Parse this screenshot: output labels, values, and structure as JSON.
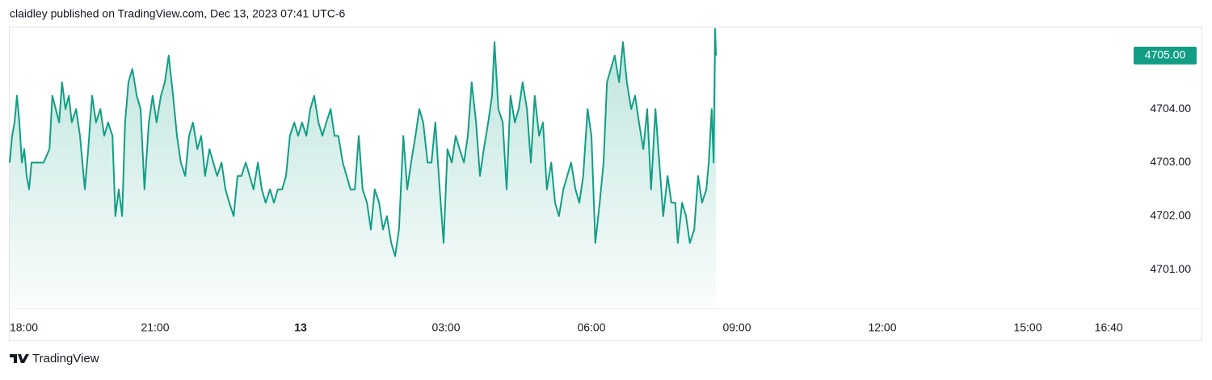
{
  "chart_data": {
    "type": "line",
    "title": "claidley published on TradingView.com, Dec 13, 2023 07:41 UTC-6",
    "brand": "TradingView",
    "color": "#129e85",
    "x": [
      18.0,
      18.05,
      18.1,
      18.15,
      18.2,
      18.25,
      18.3,
      18.35,
      18.4,
      18.45,
      18.53,
      18.7,
      18.82,
      18.88,
      18.95,
      19.02,
      19.08,
      19.15,
      19.22,
      19.28,
      19.37,
      19.45,
      19.55,
      19.62,
      19.7,
      19.78,
      19.87,
      19.95,
      20.03,
      20.12,
      20.18,
      20.25,
      20.32,
      20.38,
      20.45,
      20.53,
      20.62,
      20.7,
      20.78,
      20.87,
      20.95,
      21.03,
      21.12,
      21.2,
      21.28,
      21.37,
      21.45,
      21.53,
      21.62,
      21.7,
      21.78,
      21.87,
      21.95,
      22.03,
      22.12,
      22.2,
      22.28,
      22.37,
      22.45,
      22.53,
      22.62,
      22.7,
      22.78,
      22.87,
      22.95,
      23.03,
      23.12,
      23.2,
      23.28,
      23.37,
      23.45,
      23.53,
      23.62,
      23.7,
      23.78,
      23.87,
      23.95,
      24.03,
      24.12,
      24.2,
      24.28,
      24.37,
      24.45,
      24.53,
      24.62,
      24.7,
      24.78,
      24.87,
      24.95,
      25.03,
      25.12,
      25.2,
      25.28,
      25.37,
      25.45,
      25.53,
      25.62,
      25.7,
      25.78,
      25.87,
      25.95,
      26.03,
      26.12,
      26.2,
      26.28,
      26.37,
      26.45,
      26.53,
      26.62,
      26.7,
      26.78,
      26.87,
      26.95,
      27.03,
      27.12,
      27.2,
      27.28,
      27.37,
      27.45,
      27.53,
      27.62,
      27.7,
      27.78,
      27.87,
      27.95,
      28.0,
      28.08,
      28.17,
      28.25,
      28.33,
      28.42,
      28.5,
      28.58,
      28.67,
      28.75,
      28.83,
      28.92,
      29.0,
      29.08,
      29.17,
      29.25,
      29.33,
      29.42,
      29.5,
      29.58,
      29.67,
      29.75,
      29.83,
      29.92,
      30.0,
      30.08,
      30.17,
      30.25,
      30.32,
      30.4,
      30.48,
      30.57,
      30.65,
      30.73,
      30.82,
      30.9,
      30.98,
      31.07,
      31.15,
      31.23,
      31.32,
      31.4,
      31.48,
      31.57,
      31.65,
      31.73,
      31.78,
      31.87,
      31.95,
      32.03,
      32.12,
      32.2,
      32.28,
      32.37,
      32.42,
      32.48,
      32.52,
      32.55,
      32.57
    ],
    "values": [
      4703.0,
      4703.5,
      4703.75,
      4704.25,
      4703.75,
      4703.0,
      4703.25,
      4702.75,
      4702.5,
      4703.0,
      4703.0,
      4703.0,
      4703.25,
      4704.25,
      4704.0,
      4703.75,
      4704.5,
      4704.0,
      4704.25,
      4703.75,
      4704.0,
      4703.5,
      4702.5,
      4703.25,
      4704.25,
      4703.75,
      4704.0,
      4703.5,
      4703.75,
      4703.5,
      4702.0,
      4702.5,
      4702.0,
      4703.75,
      4704.5,
      4704.75,
      4704.25,
      4704.0,
      4702.5,
      4703.75,
      4704.25,
      4703.75,
      4704.25,
      4704.5,
      4705.0,
      4704.25,
      4703.5,
      4703.0,
      4702.75,
      4703.5,
      4703.75,
      4703.25,
      4703.5,
      4702.75,
      4703.25,
      4703.0,
      4702.75,
      4703.0,
      4702.5,
      4702.25,
      4702.0,
      4702.75,
      4702.75,
      4703.0,
      4702.75,
      4702.5,
      4703.0,
      4702.5,
      4702.25,
      4702.5,
      4702.25,
      4702.5,
      4702.5,
      4702.75,
      4703.5,
      4703.75,
      4703.5,
      4703.75,
      4703.5,
      4704.0,
      4704.25,
      4703.75,
      4703.5,
      4703.75,
      4704.0,
      4703.5,
      4703.5,
      4703.0,
      4702.75,
      4702.5,
      4702.5,
      4703.5,
      4702.5,
      4702.25,
      4701.75,
      4702.5,
      4702.25,
      4701.75,
      4702.0,
      4701.5,
      4701.25,
      4701.75,
      4703.5,
      4702.5,
      4703.0,
      4703.5,
      4704.0,
      4703.75,
      4703.0,
      4703.0,
      4703.75,
      4702.5,
      4701.5,
      4703.25,
      4703.0,
      4703.5,
      4703.25,
      4703.0,
      4703.5,
      4704.5,
      4703.75,
      4702.75,
      4703.25,
      4703.75,
      4704.25,
      4705.25,
      4704.0,
      4703.75,
      4702.5,
      4704.25,
      4703.75,
      4704.0,
      4704.5,
      4704.0,
      4703.0,
      4704.25,
      4703.5,
      4703.75,
      4702.5,
      4703.0,
      4702.25,
      4702.0,
      4702.5,
      4702.75,
      4703.0,
      4702.5,
      4702.25,
      4702.75,
      4704.0,
      4703.5,
      4701.5,
      4702.25,
      4703.0,
      4704.5,
      4704.75,
      4705.0,
      4704.5,
      4705.25,
      4704.5,
      4704.0,
      4704.25,
      4703.75,
      4703.25,
      4704.0,
      4702.5,
      4704.0,
      4703.0,
      4702.0,
      4702.75,
      4702.25,
      4702.25,
      4701.5,
      4702.25,
      4702.0,
      4701.5,
      4701.75,
      4702.75,
      4702.25,
      4702.5,
      4703.0,
      4704.0,
      4703.0,
      4705.5,
      4705.0
    ],
    "xlim": [
      18.0,
      42.6
    ],
    "ylim": [
      4700.28,
      4705.54
    ],
    "xticks": [
      {
        "value": 18,
        "label": "18:00"
      },
      {
        "value": 21,
        "label": "21:00"
      },
      {
        "value": 24,
        "label": "13"
      },
      {
        "value": 27,
        "label": "03:00"
      },
      {
        "value": 30,
        "label": "06:00"
      },
      {
        "value": 33,
        "label": "09:00"
      },
      {
        "value": 36,
        "label": "12:00"
      },
      {
        "value": 39,
        "label": "15:00"
      },
      {
        "value": 40.67,
        "label": "16:40"
      }
    ],
    "yticks": [
      {
        "value": 4701,
        "label": "4701.00"
      },
      {
        "value": 4702,
        "label": "4702.00"
      },
      {
        "value": 4703,
        "label": "4703.00"
      },
      {
        "value": 4704,
        "label": "4704.00"
      },
      {
        "value": 4705,
        "label": "4705.00"
      }
    ],
    "grid": false
  }
}
